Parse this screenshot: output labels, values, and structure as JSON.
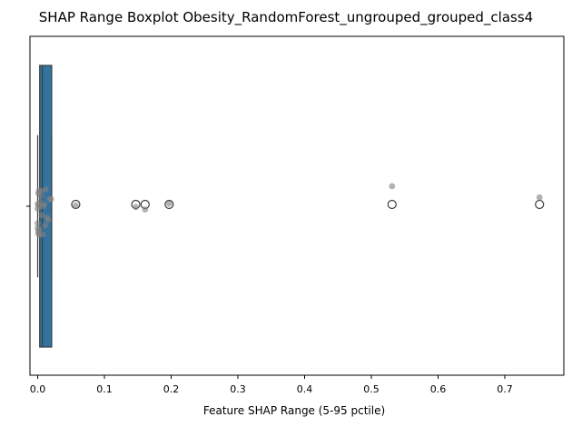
{
  "chart_data": {
    "type": "boxplot",
    "title": "SHAP Range Boxplot Obesity_RandomForest_ungrouped_grouped_class4",
    "xlabel": "Feature SHAP Range (5-95 pctile)",
    "ylabel": "",
    "xlim": [
      -0.025,
      0.79
    ],
    "xticks": [
      0.0,
      0.1,
      0.2,
      0.3,
      0.4,
      0.5,
      0.6,
      0.7
    ],
    "xtick_labels": [
      "0.0",
      "0.1",
      "0.2",
      "0.3",
      "0.4",
      "0.5",
      "0.6",
      "0.7"
    ],
    "grid": false,
    "box": {
      "color": "#3274a1",
      "whisker_low": 0.0,
      "q1": 0.003,
      "median": 0.007,
      "q3": 0.021,
      "whisker_high": 0.021
    },
    "outliers": [
      0.057,
      0.147,
      0.161,
      0.197,
      0.531,
      0.752
    ],
    "points": {
      "color": "#808080",
      "values": [
        0.0,
        0.0,
        0.0,
        0.001,
        0.0,
        0.001,
        0.002,
        0.002,
        0.003,
        0.004,
        0.005,
        0.006,
        0.008,
        0.008,
        0.01,
        0.014,
        0.016,
        0.018,
        0.02,
        0.003,
        0.005,
        0.011,
        0.012,
        0.001,
        0.057,
        0.147,
        0.161,
        0.197,
        0.531,
        0.752
      ],
      "jitter": [
        -0.12,
        0.12,
        0.18,
        0.25,
        -0.06,
        -0.25,
        -0.28,
        -0.1,
        0.27,
        -0.15,
        -0.22,
        0.02,
        -0.09,
        0.26,
        -0.11,
        0.05,
        0.08,
        -0.18,
        -0.18,
        0.2,
        -0.28,
        0.15,
        -0.3,
        0.22,
        -0.1,
        -0.08,
        -0.05,
        -0.12,
        -0.34,
        -0.2
      ]
    }
  }
}
